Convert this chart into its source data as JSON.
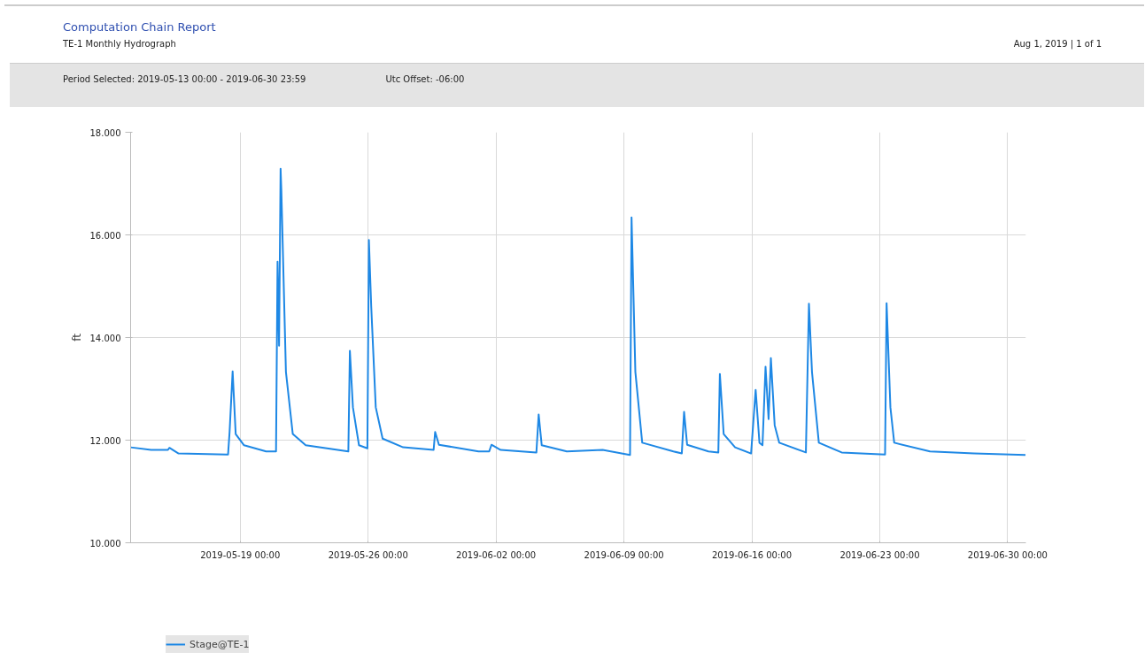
{
  "chart_data": {
    "type": "line",
    "title": "Computation Chain Report",
    "subtitle": "TE-1 Monthly Hydrograph",
    "annotations": [
      "Aug 1, 2019 | 1 of 1",
      "Period Selected: 2019-05-13 00:00 - 2019-06-30 23:59",
      "Utc Offset: -06:00"
    ],
    "ylabel": "ft",
    "xlim": [
      "2019-05-13T00:00",
      "2019-06-30T23:59"
    ],
    "xticks": [
      {
        "value": "2019-05-19",
        "label": "2019-05-19 00:00"
      },
      {
        "value": "2019-05-26",
        "label": "2019-05-26 00:00"
      },
      {
        "value": "2019-06-02",
        "label": "2019-06-02 00:00"
      },
      {
        "value": "2019-06-09",
        "label": "2019-06-09 00:00"
      },
      {
        "value": "2019-06-16",
        "label": "2019-06-16 00:00"
      },
      {
        "value": "2019-06-23",
        "label": "2019-06-23 00:00"
      },
      {
        "value": "2019-06-30",
        "label": "2019-06-30 00:00"
      }
    ],
    "ylim": [
      10,
      18
    ],
    "yticks": [
      {
        "value": 10,
        "label": "10.000"
      },
      {
        "value": 12,
        "label": "12.000"
      },
      {
        "value": 14,
        "label": "14.000"
      },
      {
        "value": 16,
        "label": "16.000"
      },
      {
        "value": 18,
        "label": "18.000"
      }
    ],
    "grid": true,
    "legend": "bottom left",
    "marker": "none",
    "line_style": "solid",
    "series": [
      {
        "name": "Stage@TE-1",
        "color": "#1e88e5",
        "x": [
          "2019-05-13T00:00",
          "2019-05-14T03:00",
          "2019-05-15T01:00",
          "2019-05-15T03:00",
          "2019-05-15T15:00",
          "2019-05-18T08:00",
          "2019-05-18T10:00",
          "2019-05-18T14:00",
          "2019-05-18T18:00",
          "2019-05-19T05:00",
          "2019-05-20T10:00",
          "2019-05-20T23:00",
          "2019-05-21T01:00",
          "2019-05-21T03:00",
          "2019-05-21T05:00",
          "2019-05-21T06:00",
          "2019-05-21T12:00",
          "2019-05-21T21:00",
          "2019-05-22T14:00",
          "2019-05-24T22:00",
          "2019-05-25T00:00",
          "2019-05-25T04:00",
          "2019-05-25T12:00",
          "2019-05-25T23:00",
          "2019-05-26T01:00",
          "2019-05-26T04:00",
          "2019-05-26T10:00",
          "2019-05-26T19:00",
          "2019-05-27T22:00",
          "2019-05-29T14:00",
          "2019-05-29T16:00",
          "2019-05-29T21:00",
          "2019-06-01T01:00",
          "2019-06-01T15:00",
          "2019-06-01T18:00",
          "2019-06-02T06:00",
          "2019-06-04T05:00",
          "2019-06-04T08:00",
          "2019-06-04T12:00",
          "2019-06-05T21:00",
          "2019-06-07T20:00",
          "2019-06-09T08:00",
          "2019-06-09T10:00",
          "2019-06-09T15:00",
          "2019-06-10T00:00",
          "2019-06-11T17:00",
          "2019-06-12T04:00",
          "2019-06-12T07:00",
          "2019-06-12T11:00",
          "2019-06-13T15:00",
          "2019-06-14T04:00",
          "2019-06-14T06:00",
          "2019-06-14T11:00",
          "2019-06-15T02:00",
          "2019-06-15T23:00",
          "2019-06-16T05:00",
          "2019-06-16T10:00",
          "2019-06-16T14:00",
          "2019-06-16T18:00",
          "2019-06-16T22:00",
          "2019-06-17T01:00",
          "2019-06-17T06:00",
          "2019-06-17T12:00",
          "2019-06-18T23:00",
          "2019-06-19T03:00",
          "2019-06-19T07:00",
          "2019-06-19T16:00",
          "2019-06-20T22:00",
          "2019-06-23T07:00",
          "2019-06-23T09:00",
          "2019-06-23T14:00",
          "2019-06-23T19:00",
          "2019-06-25T18:00",
          "2019-06-28T04:00",
          "2019-06-30T23:30"
        ],
        "values": [
          11.86,
          11.81,
          11.81,
          11.85,
          11.74,
          11.72,
          12.16,
          13.34,
          12.12,
          11.9,
          11.78,
          11.78,
          15.48,
          13.84,
          17.29,
          16.86,
          13.33,
          12.12,
          11.9,
          11.78,
          13.74,
          12.64,
          11.9,
          11.84,
          15.9,
          14.62,
          12.64,
          12.03,
          11.86,
          11.81,
          12.16,
          11.91,
          11.78,
          11.78,
          11.91,
          11.81,
          11.76,
          12.5,
          11.9,
          11.78,
          11.81,
          11.71,
          16.34,
          13.33,
          11.95,
          11.78,
          11.74,
          12.55,
          11.91,
          11.78,
          11.76,
          13.29,
          12.12,
          11.86,
          11.74,
          12.98,
          11.95,
          11.9,
          13.43,
          12.41,
          13.6,
          12.29,
          11.95,
          11.76,
          14.66,
          13.33,
          11.95,
          11.76,
          11.72,
          14.67,
          12.64,
          11.95,
          11.78,
          11.74,
          11.71
        ]
      }
    ]
  }
}
